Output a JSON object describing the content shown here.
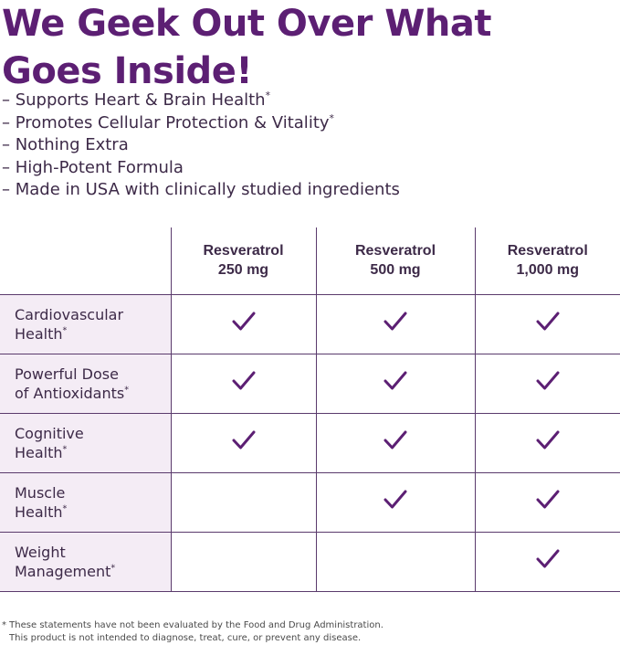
{
  "headline": {
    "line1": "We Geek Out Over What",
    "line2": "Goes Inside!"
  },
  "bullets": [
    {
      "text": "– Supports Heart & Brain Health",
      "mark": "*"
    },
    {
      "text": "– Promotes Cellular Protection & Vitality",
      "mark": "*"
    },
    {
      "text": "– Nothing Extra",
      "mark": ""
    },
    {
      "text": "– High-Potent Formula",
      "mark": ""
    },
    {
      "text": "– Made in USA with clinically studied ingredients",
      "mark": ""
    }
  ],
  "table": {
    "columns": [
      {
        "line1": "Resveratrol",
        "line2": "250 mg"
      },
      {
        "line1": "Resveratrol",
        "line2": "500 mg"
      },
      {
        "line1": "Resveratrol",
        "line2": "1,000 mg"
      }
    ],
    "rows": [
      {
        "line1": "Cardiovascular",
        "line2": "Health",
        "mark": "*",
        "checks": [
          true,
          true,
          true
        ]
      },
      {
        "line1": "Powerful Dose",
        "line2": "of Antioxidants",
        "mark": "*",
        "checks": [
          true,
          true,
          true
        ]
      },
      {
        "line1": "Cognitive",
        "line2": "Health",
        "mark": "*",
        "checks": [
          true,
          true,
          true
        ]
      },
      {
        "line1": "Muscle",
        "line2": "Health",
        "mark": "*",
        "checks": [
          false,
          true,
          true
        ]
      },
      {
        "line1": "Weight",
        "line2": "Management",
        "mark": "*",
        "checks": [
          false,
          false,
          true
        ]
      }
    ],
    "check_icon": "checkmark-icon",
    "check_color": "#5c1f73"
  },
  "footnote": {
    "line1": "* These statements have not been evaluated by the Food and Drug Administration.",
    "line2": "This product is not intended to diagnose, treat, cure, or prevent any disease."
  },
  "colors": {
    "headline": "#5c1f73",
    "label_bg": "#f4ecf5",
    "grid": "#5a3a6c"
  }
}
